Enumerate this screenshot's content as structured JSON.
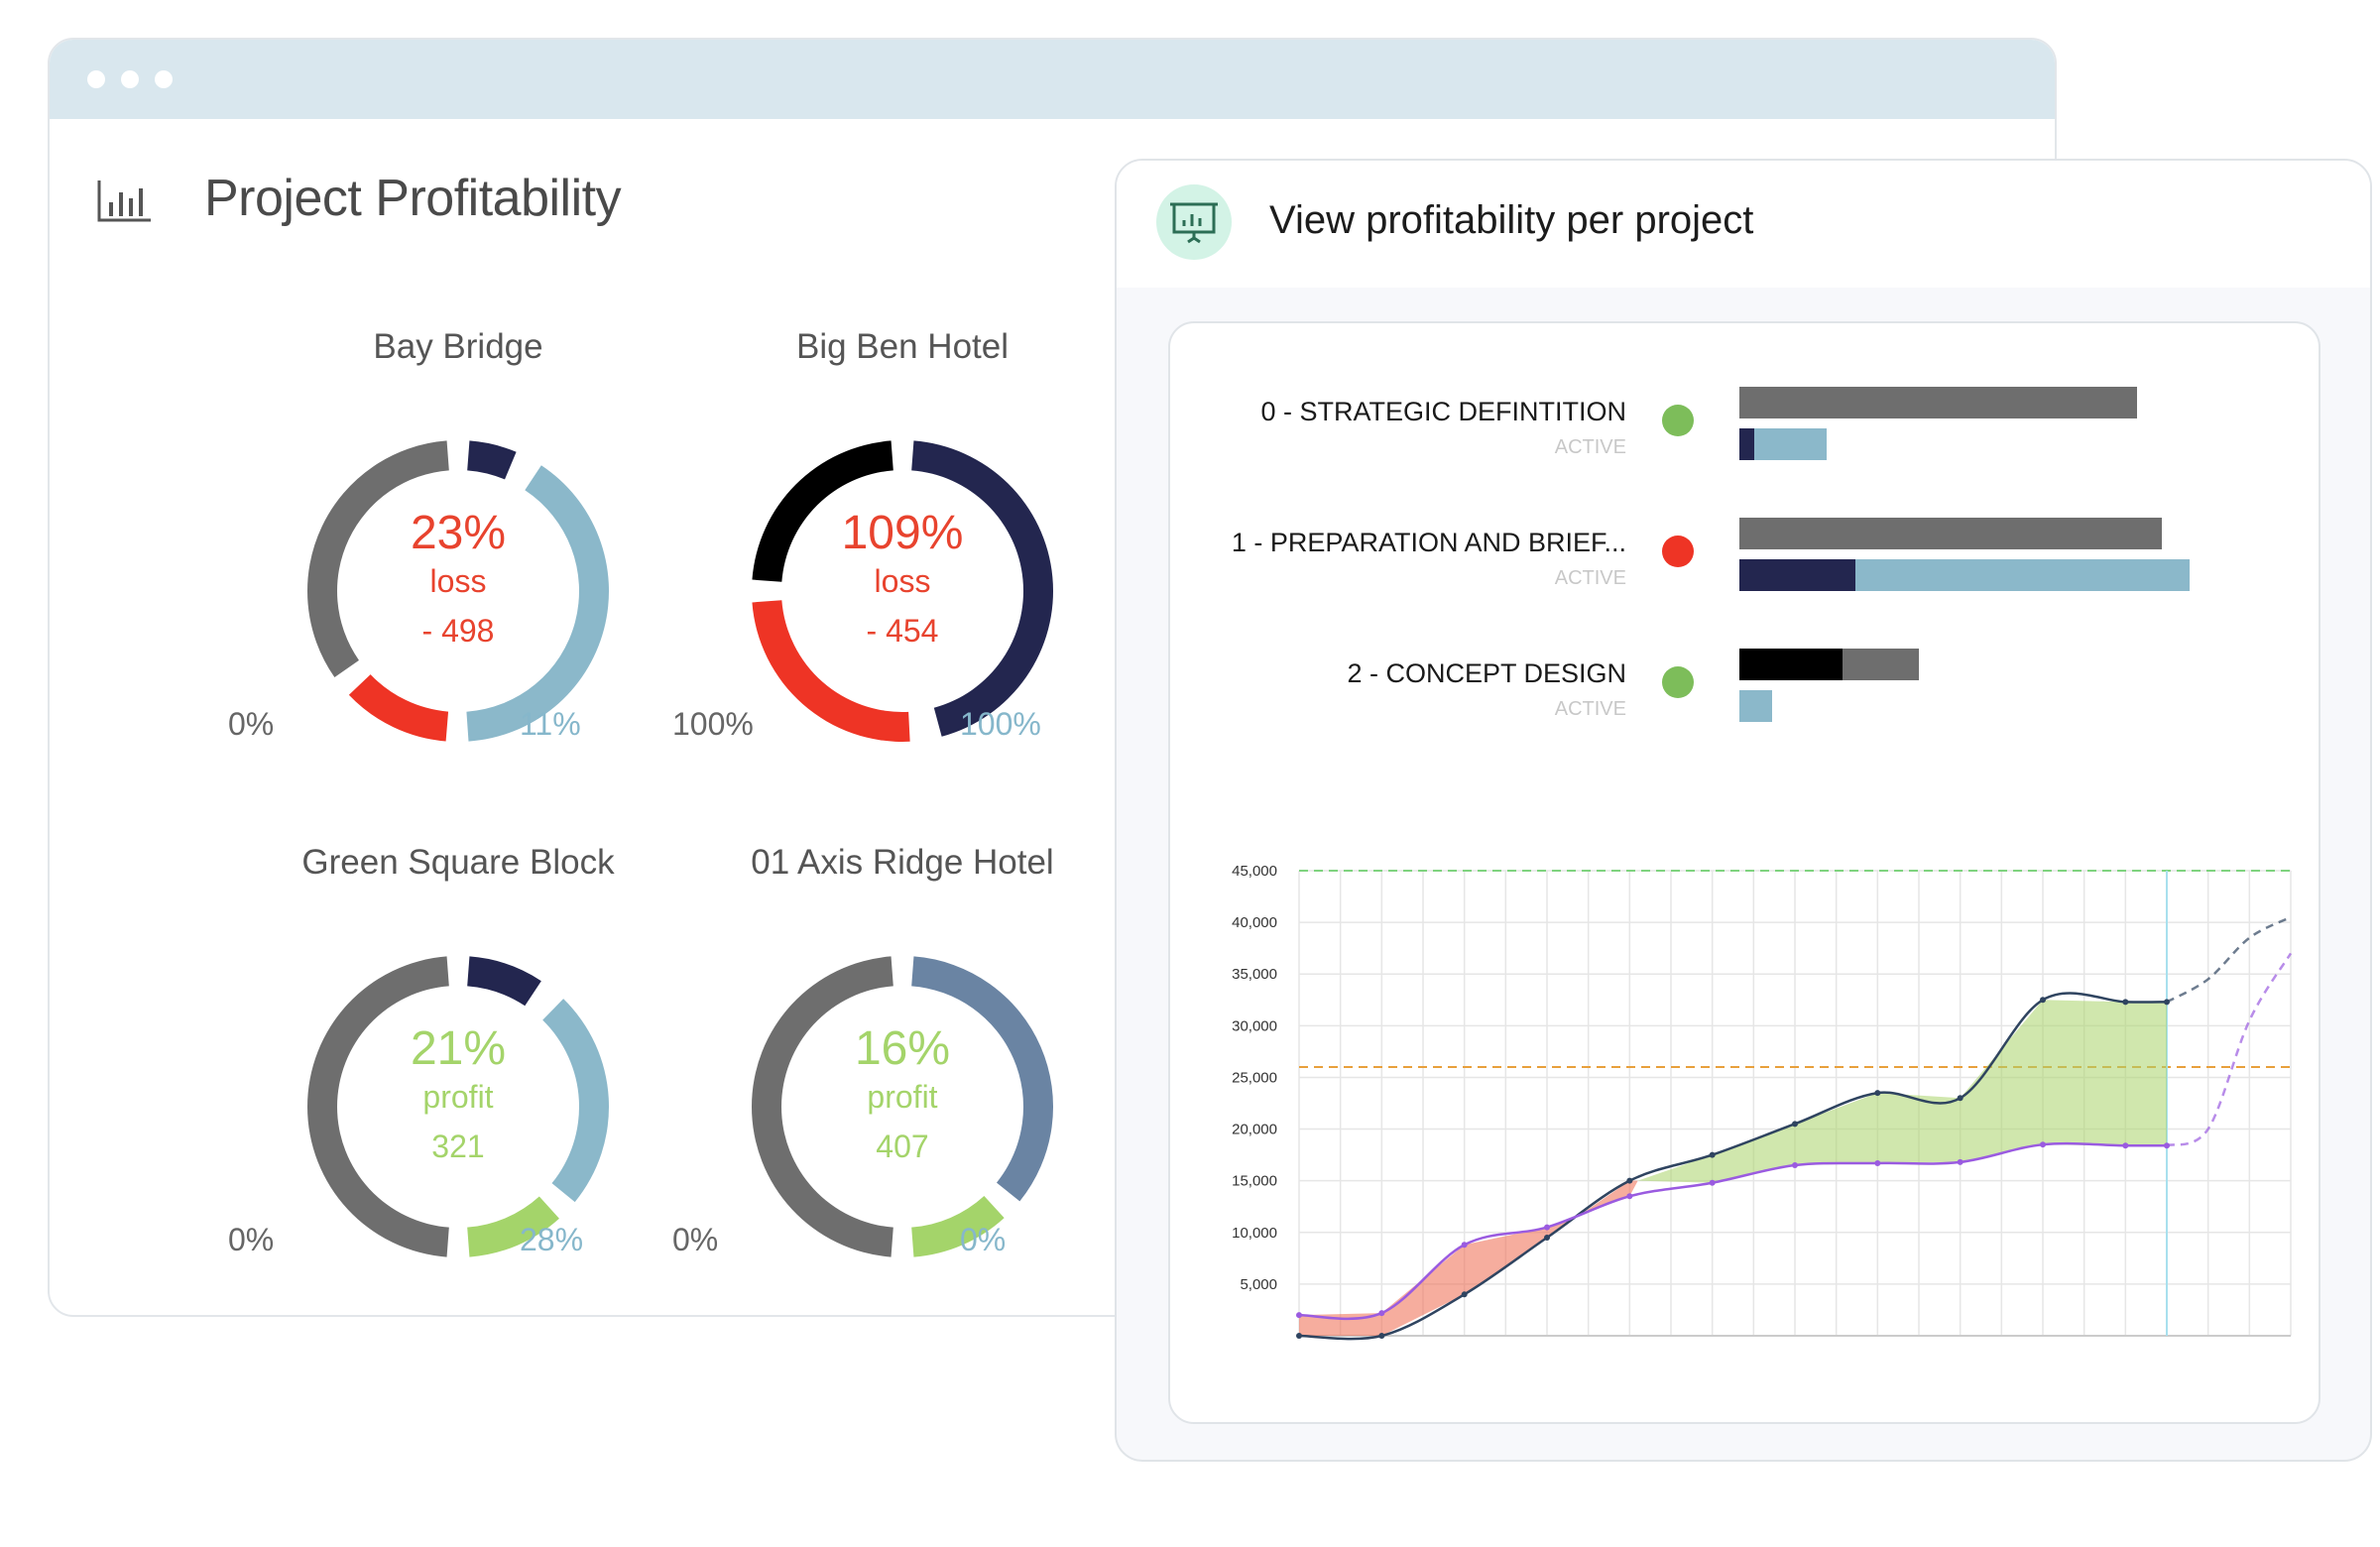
{
  "main": {
    "title": "Project Profitability",
    "title_icon": "bar-chart-icon",
    "donuts": [
      {
        "title": "Bay Bridge",
        "percent": "23%",
        "word": "loss",
        "amount": "- 498",
        "status": "loss",
        "left_label": "0%",
        "right_label": "11%",
        "segments": [
          {
            "color": "#23264f",
            "fraction": 0.075
          },
          {
            "color": "#e8432e",
            "fraction": 0.006
          },
          {
            "color": "#8bb8ca",
            "fraction": 0.42
          },
          {
            "color": "#ee3425",
            "fraction": 0.14
          },
          {
            "color": "#6e6e6e",
            "fraction": 0.359
          }
        ]
      },
      {
        "title": "Big Ben Hotel",
        "percent": "109%",
        "word": "loss",
        "amount": "- 454",
        "status": "loss",
        "left_label": "100%",
        "right_label": "100%",
        "segments": [
          {
            "color": "#23264f",
            "fraction": 0.47
          },
          {
            "color": "#e8432e",
            "fraction": 0.01
          },
          {
            "color": "#ee3425",
            "fraction": 0.27
          },
          {
            "color": "#000000",
            "fraction": 0.25
          }
        ]
      },
      {
        "title": "Green Square Block",
        "percent": "21%",
        "word": "profit",
        "amount": "321",
        "status": "profit",
        "left_label": "0%",
        "right_label": "28%",
        "segments": [
          {
            "color": "#23264f",
            "fraction": 0.105
          },
          {
            "color": "#e8432e",
            "fraction": 0.006
          },
          {
            "color": "#8bb8ca",
            "fraction": 0.26
          },
          {
            "color": "#a4d46a",
            "fraction": 0.129
          },
          {
            "color": "#6e6e6e",
            "fraction": 0.5
          }
        ]
      },
      {
        "title": "01 Axis Ridge Hotel",
        "percent": "16%",
        "word": "profit",
        "amount": "407",
        "status": "profit",
        "left_label": "0%",
        "right_label": "0%",
        "segments": [
          {
            "color": "#6a84a3",
            "fraction": 0.37
          },
          {
            "color": "#a4d46a",
            "fraction": 0.13
          },
          {
            "color": "#6e6e6e",
            "fraction": 0.5
          }
        ]
      }
    ]
  },
  "panel": {
    "title": "View profitability per project",
    "icon": "presentation-chart-icon",
    "phases": [
      {
        "name": "0 - STRATEGIC DEFINTITION",
        "status": "ACTIVE",
        "dot_color": "#7dbd5a",
        "top_bar": [
          {
            "color": "#6e6e6e",
            "fraction": 0.627
          }
        ],
        "bottom_bar": [
          {
            "color": "#23264f",
            "fraction": 0.023
          },
          {
            "color": "#8bb8ca",
            "fraction": 0.114
          }
        ]
      },
      {
        "name": "1 - PREPARATION AND BRIEF...",
        "status": "ACTIVE",
        "dot_color": "#ee3425",
        "top_bar": [
          {
            "color": "#6e6e6e",
            "fraction": 0.666
          }
        ],
        "bottom_bar": [
          {
            "color": "#23264f",
            "fraction": 0.183
          },
          {
            "color": "#8bb8ca",
            "fraction": 0.526
          }
        ]
      },
      {
        "name": "2 - CONCEPT DESIGN",
        "status": "ACTIVE",
        "dot_color": "#7dbd5a",
        "top_bar": [
          {
            "color": "#000000",
            "fraction": 0.163
          },
          {
            "color": "#6e6e6e",
            "fraction": 0.12
          }
        ],
        "bottom_bar": [
          {
            "color": "#8bb8ca",
            "fraction": 0.052
          }
        ]
      }
    ]
  },
  "chart_data": {
    "type": "line",
    "ylim": [
      0,
      45000
    ],
    "y_ticks": [
      "45,000",
      "40,000",
      "35,000",
      "30,000",
      "25,000",
      "20,000",
      "15,000",
      "10,000",
      "5,000"
    ],
    "y_tick_values": [
      45000,
      40000,
      35000,
      30000,
      25000,
      20000,
      15000,
      10000,
      5000
    ],
    "x_count": 25,
    "grid": true,
    "reference_lines": [
      {
        "value": 45000,
        "color": "#7fd37f"
      },
      {
        "value": 26000,
        "color": "#e8a03c"
      }
    ],
    "current_index": 21,
    "series": [
      {
        "color": "#2f4460",
        "x": [
          0,
          2,
          4,
          6,
          8,
          10,
          12,
          14,
          16,
          18,
          20,
          21
        ],
        "values": [
          0,
          0,
          4000,
          9500,
          15000,
          17500,
          20500,
          23500,
          23000,
          32500,
          32300,
          32300
        ],
        "forecast_x": [
          21,
          22,
          23,
          24
        ],
        "forecast": [
          32300,
          34500,
          38500,
          40500
        ]
      },
      {
        "color": "#9a5be0",
        "x": [
          0,
          2,
          4,
          6,
          8,
          10,
          12,
          14,
          16,
          18,
          20,
          21
        ],
        "values": [
          2000,
          2200,
          8800,
          10500,
          13500,
          14800,
          16500,
          16700,
          16800,
          18500,
          18400,
          18400
        ],
        "forecast_x": [
          21,
          22,
          23,
          24
        ],
        "forecast": [
          18400,
          20000,
          30500,
          37000
        ]
      }
    ]
  }
}
